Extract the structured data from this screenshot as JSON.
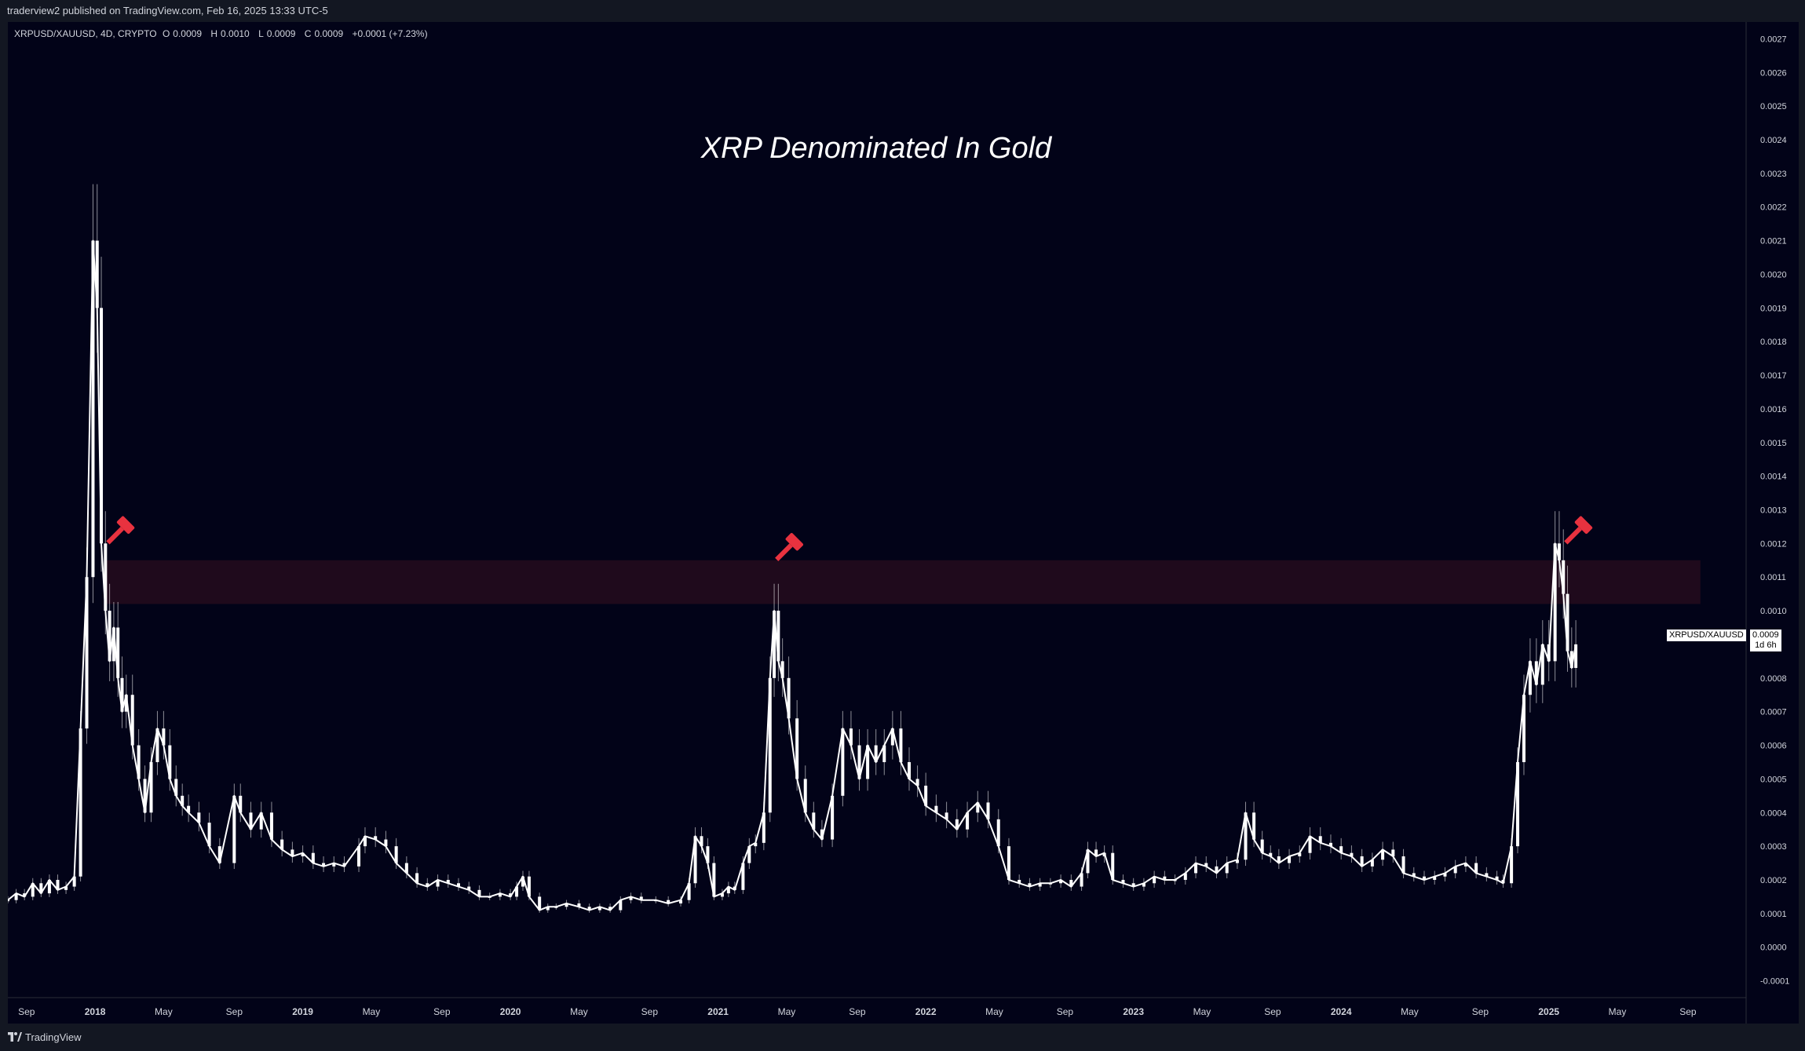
{
  "header": {
    "published_text": "traderview2 published on TradingView.com, Feb 16, 2025 13:33 UTC-5"
  },
  "legend": {
    "symbol_info": "XRPUSD/XAUUSD, 4D, CRYPTO",
    "o_label": "O",
    "o_value": "0.0009",
    "h_label": "H",
    "h_value": "0.0010",
    "l_label": "L",
    "l_value": "0.0009",
    "c_label": "C",
    "c_value": "0.0009",
    "change": "+0.0001 (+7.23%)"
  },
  "price_label": {
    "symbol": "XRPUSD/XAUUSD",
    "value": "0.0009",
    "countdown": "1d 6h"
  },
  "footer": {
    "brand": "TradingView",
    "logo_icon": "tradingview-logo-icon"
  },
  "colors": {
    "background": "#020318",
    "frame": "#131722",
    "candle": "#ffffff",
    "zone": "#1f0a1c",
    "gavel": "#e8323f",
    "text": "#d1d4dc"
  },
  "chart_data": {
    "type": "line",
    "title": "XRP Denominated In Gold",
    "ylim": [
      -0.00015,
      0.00275
    ],
    "y_ticks": [
      "0.0027",
      "0.0026",
      "0.0025",
      "0.0024",
      "0.0023",
      "0.0022",
      "0.0021",
      "0.0020",
      "0.0019",
      "0.0018",
      "0.0017",
      "0.0016",
      "0.0015",
      "0.0014",
      "0.0013",
      "0.0012",
      "0.0011",
      "0.0010",
      "0.0008",
      "0.0007",
      "0.0006",
      "0.0005",
      "0.0004",
      "0.0003",
      "0.0002",
      "0.0001",
      "0.0000",
      "-0.0001"
    ],
    "x_ticks": [
      {
        "label": "Sep",
        "t": 2017.67,
        "bold": false
      },
      {
        "label": "2018",
        "t": 2018.0,
        "bold": true
      },
      {
        "label": "May",
        "t": 2018.33,
        "bold": false
      },
      {
        "label": "Sep",
        "t": 2018.67,
        "bold": false
      },
      {
        "label": "2019",
        "t": 2019.0,
        "bold": true
      },
      {
        "label": "May",
        "t": 2019.33,
        "bold": false
      },
      {
        "label": "Sep",
        "t": 2019.67,
        "bold": false
      },
      {
        "label": "2020",
        "t": 2020.0,
        "bold": true
      },
      {
        "label": "May",
        "t": 2020.33,
        "bold": false
      },
      {
        "label": "Sep",
        "t": 2020.67,
        "bold": false
      },
      {
        "label": "2021",
        "t": 2021.0,
        "bold": true
      },
      {
        "label": "May",
        "t": 2021.33,
        "bold": false
      },
      {
        "label": "Sep",
        "t": 2021.67,
        "bold": false
      },
      {
        "label": "2022",
        "t": 2022.0,
        "bold": true
      },
      {
        "label": "May",
        "t": 2022.33,
        "bold": false
      },
      {
        "label": "Sep",
        "t": 2022.67,
        "bold": false
      },
      {
        "label": "2023",
        "t": 2023.0,
        "bold": true
      },
      {
        "label": "May",
        "t": 2023.33,
        "bold": false
      },
      {
        "label": "Sep",
        "t": 2023.67,
        "bold": false
      },
      {
        "label": "2024",
        "t": 2024.0,
        "bold": true
      },
      {
        "label": "May",
        "t": 2024.33,
        "bold": false
      },
      {
        "label": "Sep",
        "t": 2024.67,
        "bold": false
      },
      {
        "label": "2025",
        "t": 2025.0,
        "bold": true
      },
      {
        "label": "May",
        "t": 2025.33,
        "bold": false
      },
      {
        "label": "Sep",
        "t": 2025.67,
        "bold": false
      }
    ],
    "xlim": [
      2017.58,
      2025.95
    ],
    "series": [
      {
        "values": [
          [
            2017.58,
            0.00014
          ],
          [
            2017.62,
            0.00016
          ],
          [
            2017.66,
            0.00015
          ],
          [
            2017.7,
            0.00019
          ],
          [
            2017.74,
            0.00016
          ],
          [
            2017.78,
            0.0002
          ],
          [
            2017.82,
            0.00017
          ],
          [
            2017.86,
            0.00018
          ],
          [
            2017.9,
            0.00021
          ],
          [
            2017.93,
            0.00065
          ],
          [
            2017.96,
            0.0011
          ],
          [
            2017.99,
            0.0021
          ],
          [
            2018.01,
            0.0019
          ],
          [
            2018.03,
            0.0012
          ],
          [
            2018.05,
            0.001
          ],
          [
            2018.07,
            0.00085
          ],
          [
            2018.09,
            0.00095
          ],
          [
            2018.11,
            0.0008
          ],
          [
            2018.13,
            0.0007
          ],
          [
            2018.15,
            0.00075
          ],
          [
            2018.18,
            0.0006
          ],
          [
            2018.21,
            0.0005
          ],
          [
            2018.24,
            0.0004
          ],
          [
            2018.27,
            0.00055
          ],
          [
            2018.3,
            0.00065
          ],
          [
            2018.33,
            0.0006
          ],
          [
            2018.36,
            0.0005
          ],
          [
            2018.39,
            0.00045
          ],
          [
            2018.42,
            0.00042
          ],
          [
            2018.45,
            0.0004
          ],
          [
            2018.5,
            0.00037
          ],
          [
            2018.55,
            0.0003
          ],
          [
            2018.6,
            0.00025
          ],
          [
            2018.67,
            0.00045
          ],
          [
            2018.7,
            0.0004
          ],
          [
            2018.75,
            0.00035
          ],
          [
            2018.8,
            0.0004
          ],
          [
            2018.85,
            0.00032
          ],
          [
            2018.9,
            0.00029
          ],
          [
            2018.95,
            0.00027
          ],
          [
            2019.0,
            0.00028
          ],
          [
            2019.05,
            0.00025
          ],
          [
            2019.1,
            0.00024
          ],
          [
            2019.15,
            0.00025
          ],
          [
            2019.2,
            0.00024
          ],
          [
            2019.27,
            0.0003
          ],
          [
            2019.3,
            0.00033
          ],
          [
            2019.35,
            0.00032
          ],
          [
            2019.4,
            0.0003
          ],
          [
            2019.45,
            0.00025
          ],
          [
            2019.5,
            0.00022
          ],
          [
            2019.55,
            0.00019
          ],
          [
            2019.6,
            0.00018
          ],
          [
            2019.65,
            0.0002
          ],
          [
            2019.7,
            0.00019
          ],
          [
            2019.75,
            0.00018
          ],
          [
            2019.8,
            0.00017
          ],
          [
            2019.85,
            0.00015
          ],
          [
            2019.9,
            0.00015
          ],
          [
            2019.95,
            0.00016
          ],
          [
            2020.0,
            0.00015
          ],
          [
            2020.03,
            0.00018
          ],
          [
            2020.06,
            0.00021
          ],
          [
            2020.09,
            0.00015
          ],
          [
            2020.14,
            0.00011
          ],
          [
            2020.18,
            0.00012
          ],
          [
            2020.22,
            0.00012
          ],
          [
            2020.27,
            0.00013
          ],
          [
            2020.33,
            0.00012
          ],
          [
            2020.38,
            0.00011
          ],
          [
            2020.43,
            0.00012
          ],
          [
            2020.48,
            0.00011
          ],
          [
            2020.53,
            0.00014
          ],
          [
            2020.58,
            0.00015
          ],
          [
            2020.63,
            0.00014
          ],
          [
            2020.7,
            0.00014
          ],
          [
            2020.76,
            0.00013
          ],
          [
            2020.82,
            0.00014
          ],
          [
            2020.86,
            0.00019
          ],
          [
            2020.89,
            0.00033
          ],
          [
            2020.92,
            0.0003
          ],
          [
            2020.95,
            0.00025
          ],
          [
            2020.98,
            0.00015
          ],
          [
            2021.02,
            0.00016
          ],
          [
            2021.05,
            0.00018
          ],
          [
            2021.08,
            0.00017
          ],
          [
            2021.12,
            0.00025
          ],
          [
            2021.15,
            0.0003
          ],
          [
            2021.18,
            0.00031
          ],
          [
            2021.22,
            0.0004
          ],
          [
            2021.25,
            0.0008
          ],
          [
            2021.27,
            0.001
          ],
          [
            2021.29,
            0.00085
          ],
          [
            2021.31,
            0.0008
          ],
          [
            2021.34,
            0.00068
          ],
          [
            2021.38,
            0.0005
          ],
          [
            2021.42,
            0.0004
          ],
          [
            2021.46,
            0.00035
          ],
          [
            2021.5,
            0.00032
          ],
          [
            2021.55,
            0.00045
          ],
          [
            2021.6,
            0.00065
          ],
          [
            2021.64,
            0.0006
          ],
          [
            2021.68,
            0.0005
          ],
          [
            2021.72,
            0.0006
          ],
          [
            2021.76,
            0.00055
          ],
          [
            2021.8,
            0.0006
          ],
          [
            2021.84,
            0.00065
          ],
          [
            2021.88,
            0.00055
          ],
          [
            2021.92,
            0.0005
          ],
          [
            2021.96,
            0.00048
          ],
          [
            2022.0,
            0.00042
          ],
          [
            2022.05,
            0.0004
          ],
          [
            2022.1,
            0.00038
          ],
          [
            2022.15,
            0.00035
          ],
          [
            2022.2,
            0.0004
          ],
          [
            2022.25,
            0.00043
          ],
          [
            2022.3,
            0.00038
          ],
          [
            2022.35,
            0.0003
          ],
          [
            2022.4,
            0.0002
          ],
          [
            2022.45,
            0.00019
          ],
          [
            2022.5,
            0.00018
          ],
          [
            2022.55,
            0.00019
          ],
          [
            2022.6,
            0.00019
          ],
          [
            2022.65,
            0.0002
          ],
          [
            2022.7,
            0.00018
          ],
          [
            2022.75,
            0.00022
          ],
          [
            2022.78,
            0.00029
          ],
          [
            2022.82,
            0.00027
          ],
          [
            2022.86,
            0.00028
          ],
          [
            2022.9,
            0.0002
          ],
          [
            2022.95,
            0.00019
          ],
          [
            2023.0,
            0.00018
          ],
          [
            2023.05,
            0.00019
          ],
          [
            2023.1,
            0.00021
          ],
          [
            2023.15,
            0.0002
          ],
          [
            2023.2,
            0.0002
          ],
          [
            2023.25,
            0.00022
          ],
          [
            2023.3,
            0.00025
          ],
          [
            2023.35,
            0.00024
          ],
          [
            2023.4,
            0.00022
          ],
          [
            2023.45,
            0.00025
          ],
          [
            2023.5,
            0.00026
          ],
          [
            2023.54,
            0.0004
          ],
          [
            2023.58,
            0.00032
          ],
          [
            2023.62,
            0.00028
          ],
          [
            2023.66,
            0.00027
          ],
          [
            2023.7,
            0.00025
          ],
          [
            2023.75,
            0.00027
          ],
          [
            2023.8,
            0.00028
          ],
          [
            2023.85,
            0.00033
          ],
          [
            2023.9,
            0.00031
          ],
          [
            2023.95,
            0.0003
          ],
          [
            2024.0,
            0.00028
          ],
          [
            2024.05,
            0.00027
          ],
          [
            2024.1,
            0.00024
          ],
          [
            2024.15,
            0.00026
          ],
          [
            2024.2,
            0.00029
          ],
          [
            2024.25,
            0.00027
          ],
          [
            2024.3,
            0.00022
          ],
          [
            2024.35,
            0.00021
          ],
          [
            2024.4,
            0.0002
          ],
          [
            2024.45,
            0.00021
          ],
          [
            2024.5,
            0.00022
          ],
          [
            2024.55,
            0.00024
          ],
          [
            2024.6,
            0.00025
          ],
          [
            2024.65,
            0.00022
          ],
          [
            2024.7,
            0.00021
          ],
          [
            2024.75,
            0.0002
          ],
          [
            2024.78,
            0.00019
          ],
          [
            2024.82,
            0.0003
          ],
          [
            2024.85,
            0.00055
          ],
          [
            2024.88,
            0.00075
          ],
          [
            2024.91,
            0.00085
          ],
          [
            2024.94,
            0.00078
          ],
          [
            2024.97,
            0.0009
          ],
          [
            2025.0,
            0.00085
          ],
          [
            2025.03,
            0.0012
          ],
          [
            2025.05,
            0.00115
          ],
          [
            2025.07,
            0.00105
          ],
          [
            2025.09,
            0.00088
          ],
          [
            2025.11,
            0.00083
          ],
          [
            2025.13,
            0.0009
          ]
        ]
      }
    ]
  }
}
